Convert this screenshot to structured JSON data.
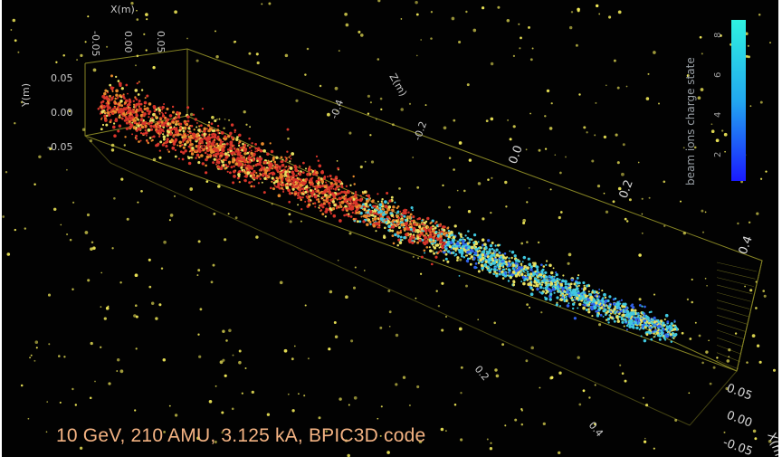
{
  "caption": "10 GeV, 210 AMU, 3.125 kA, BPIC3D code",
  "colorbar": {
    "label": "beam ions charge state",
    "ticks": [
      "8",
      "6",
      "4",
      "2"
    ],
    "gradient_top": "#2ff2e0",
    "gradient_bottom": "#1a1aff"
  },
  "axes": {
    "x_label": "X(m)",
    "x_ticks": [
      "-0.05",
      "0.00",
      "0.05"
    ],
    "y_label": "Y(m)",
    "y_ticks": [
      "0.05",
      "0.00",
      "-0.05"
    ],
    "z_label": "Z(m)",
    "z_ticks": [
      "-0.4",
      "-0.2",
      "0.0",
      "0.2",
      "0.4"
    ],
    "right_ticks": [
      "0.05",
      "0.00",
      "-0.05"
    ],
    "right_label": "X(m)",
    "front_ticks": [
      "0.2",
      "0.4"
    ]
  },
  "colors": {
    "background": "#020202",
    "box_lines": "#9c9a2a",
    "beam_red": "#d8352a",
    "beam_orange": "#e88a2c",
    "beam_yellow": "#e8e060",
    "beam_cyan": "#40c8e0",
    "beam_blue": "#3060e8",
    "scatter_yellow": "#f0e858",
    "caption_color": "#f4b383"
  }
}
